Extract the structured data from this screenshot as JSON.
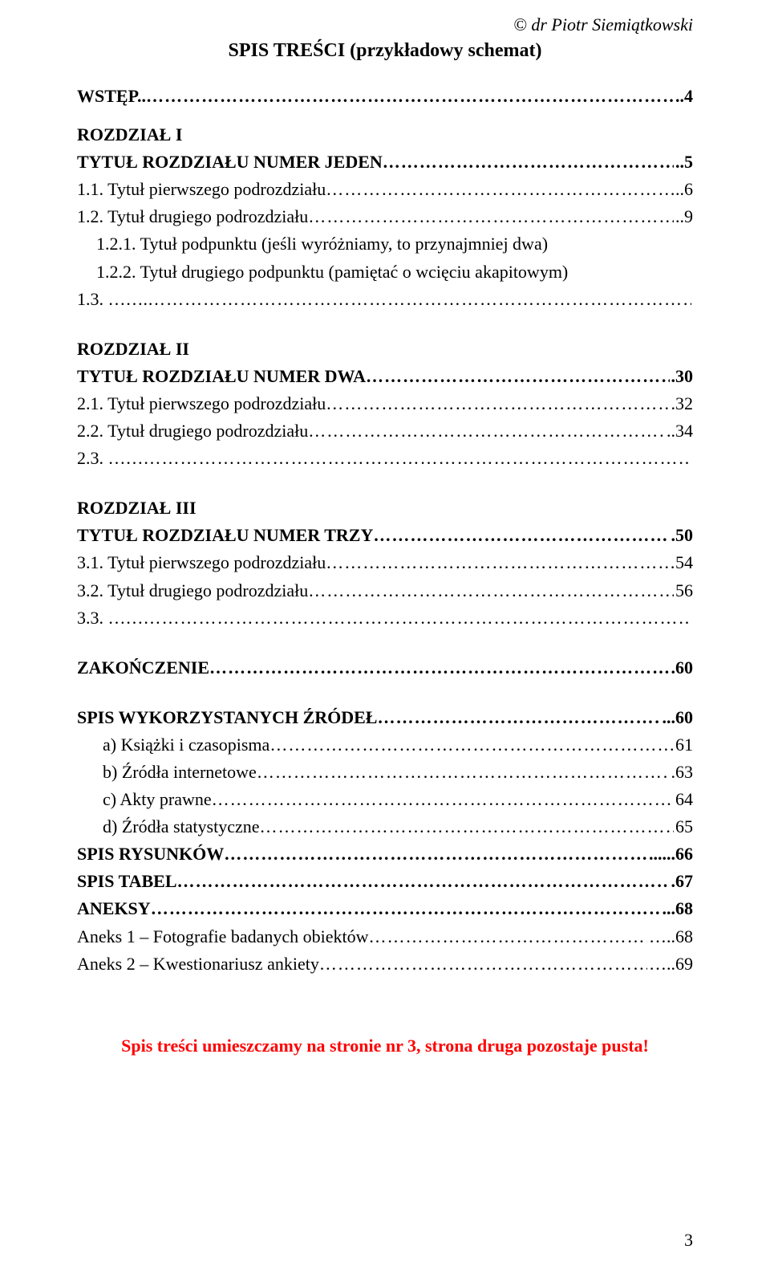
{
  "author": "© dr Piotr Siemiątkowski",
  "title": "SPIS TREŚCI (przykładowy schemat)",
  "colors": {
    "text": "#000000",
    "background": "#ffffff",
    "accent_red": "#ff0000"
  },
  "typography": {
    "family": "Times New Roman",
    "base_size_pt": 16,
    "title_size_pt": 18,
    "title_weight": "bold"
  },
  "toc": [
    {
      "kind": "row",
      "bold": true,
      "label": "WSTĘP..",
      "leader": "…",
      "page": "..4"
    },
    {
      "kind": "gap-sm"
    },
    {
      "kind": "line",
      "bold": true,
      "text": "ROZDZIAŁ I"
    },
    {
      "kind": "row",
      "bold": true,
      "label": "TYTUŁ ROZDZIAŁU NUMER JEDEN",
      "leader": "…",
      "page": "..5"
    },
    {
      "kind": "row",
      "label": "1.1.  Tytuł pierwszego podrozdziału",
      "leader": "…",
      "page": "..6"
    },
    {
      "kind": "row",
      "label": "1.2.  Tytuł drugiego podrozdziału",
      "leader": "…",
      "page": "..9"
    },
    {
      "kind": "row",
      "indent": "b",
      "label": "1.2.1. Tytuł podpunktu (jeśli wyróżniamy, to przynajmniej dwa)"
    },
    {
      "kind": "row",
      "indent": "b",
      "label": "1.2.2. Tytuł drugiego podpunktu (pamiętać o wcięciu akapitowym)"
    },
    {
      "kind": "row",
      "label": "1.3.  …….",
      "leader": "…",
      "page": ""
    },
    {
      "kind": "gap"
    },
    {
      "kind": "line",
      "bold": true,
      "text": "ROZDZIAŁ II"
    },
    {
      "kind": "row",
      "bold": true,
      "label": "TYTUŁ ROZDZIAŁU NUMER DWA",
      "leader": "…",
      "page": ".30"
    },
    {
      "kind": "row",
      "label": "2.1. Tytuł pierwszego podrozdziału",
      "leader": "…",
      "page": ".32"
    },
    {
      "kind": "row",
      "label": "2.2. Tytuł drugiego podrozdziału",
      "leader": "…",
      "page": "..34"
    },
    {
      "kind": "row",
      "label": "2.3. ……",
      "leader": "…",
      "page": ""
    },
    {
      "kind": "gap"
    },
    {
      "kind": "line",
      "bold": true,
      "text": "ROZDZIAŁ III"
    },
    {
      "kind": "row",
      "bold": true,
      "label": "TYTUŁ ROZDZIAŁU NUMER TRZY",
      "leader": "…",
      "page": ".50"
    },
    {
      "kind": "row",
      "label": "3.1. Tytuł pierwszego podrozdziału",
      "leader": "…",
      "page": " 54"
    },
    {
      "kind": "row",
      "label": "3.2. Tytuł drugiego podrozdziału",
      "leader": "…",
      "page": " 56"
    },
    {
      "kind": "row",
      "label": "3.3. ……",
      "leader": "…",
      "page": ""
    },
    {
      "kind": "gap"
    },
    {
      "kind": "row",
      "bold": true,
      "label": "ZAKOŃCZENIE",
      "leader": "…",
      "page": ".60"
    },
    {
      "kind": "gap"
    },
    {
      "kind": "row",
      "bold": true,
      "label": "SPIS WYKORZYSTANYCH ŹRÓDEŁ",
      "leader": "…",
      "page": "...60"
    },
    {
      "kind": "row",
      "indent": "a",
      "label": "a)  Książki i czasopisma",
      "leader": "…",
      "page": " 61"
    },
    {
      "kind": "row",
      "indent": "a",
      "label": "b)  Źródła internetowe",
      "leader": "…",
      "page": ".63"
    },
    {
      "kind": "row",
      "indent": "a",
      "label": "c)  Akty prawne",
      "leader": "…",
      "page": " 64"
    },
    {
      "kind": "row",
      "indent": "a",
      "label": "d)  Źródła statystyczne",
      "leader": "…",
      "page": " 65"
    },
    {
      "kind": "row",
      "bold": true,
      "label": "SPIS RYSUNKÓW",
      "leader": "…",
      "page": "......66"
    },
    {
      "kind": "row",
      "bold": true,
      "label": "SPIS TABEL",
      "leader": "…",
      "page": ".67"
    },
    {
      "kind": "row",
      "bold": true,
      "label": "ANEKSY",
      "leader": "…",
      "page": "...68"
    },
    {
      "kind": "row",
      "label": "Aneks 1 – Fotografie badanych obiektów",
      "leader": "…",
      "page": "…..68"
    },
    {
      "kind": "row",
      "label": "Aneks 2 – Kwestionariusz ankiety",
      "leader": "…",
      "page": "…..69"
    }
  ],
  "footer_note": "Spis treści umieszczamy na stronie nr 3, strona druga pozostaje pusta!",
  "page_number": "3"
}
